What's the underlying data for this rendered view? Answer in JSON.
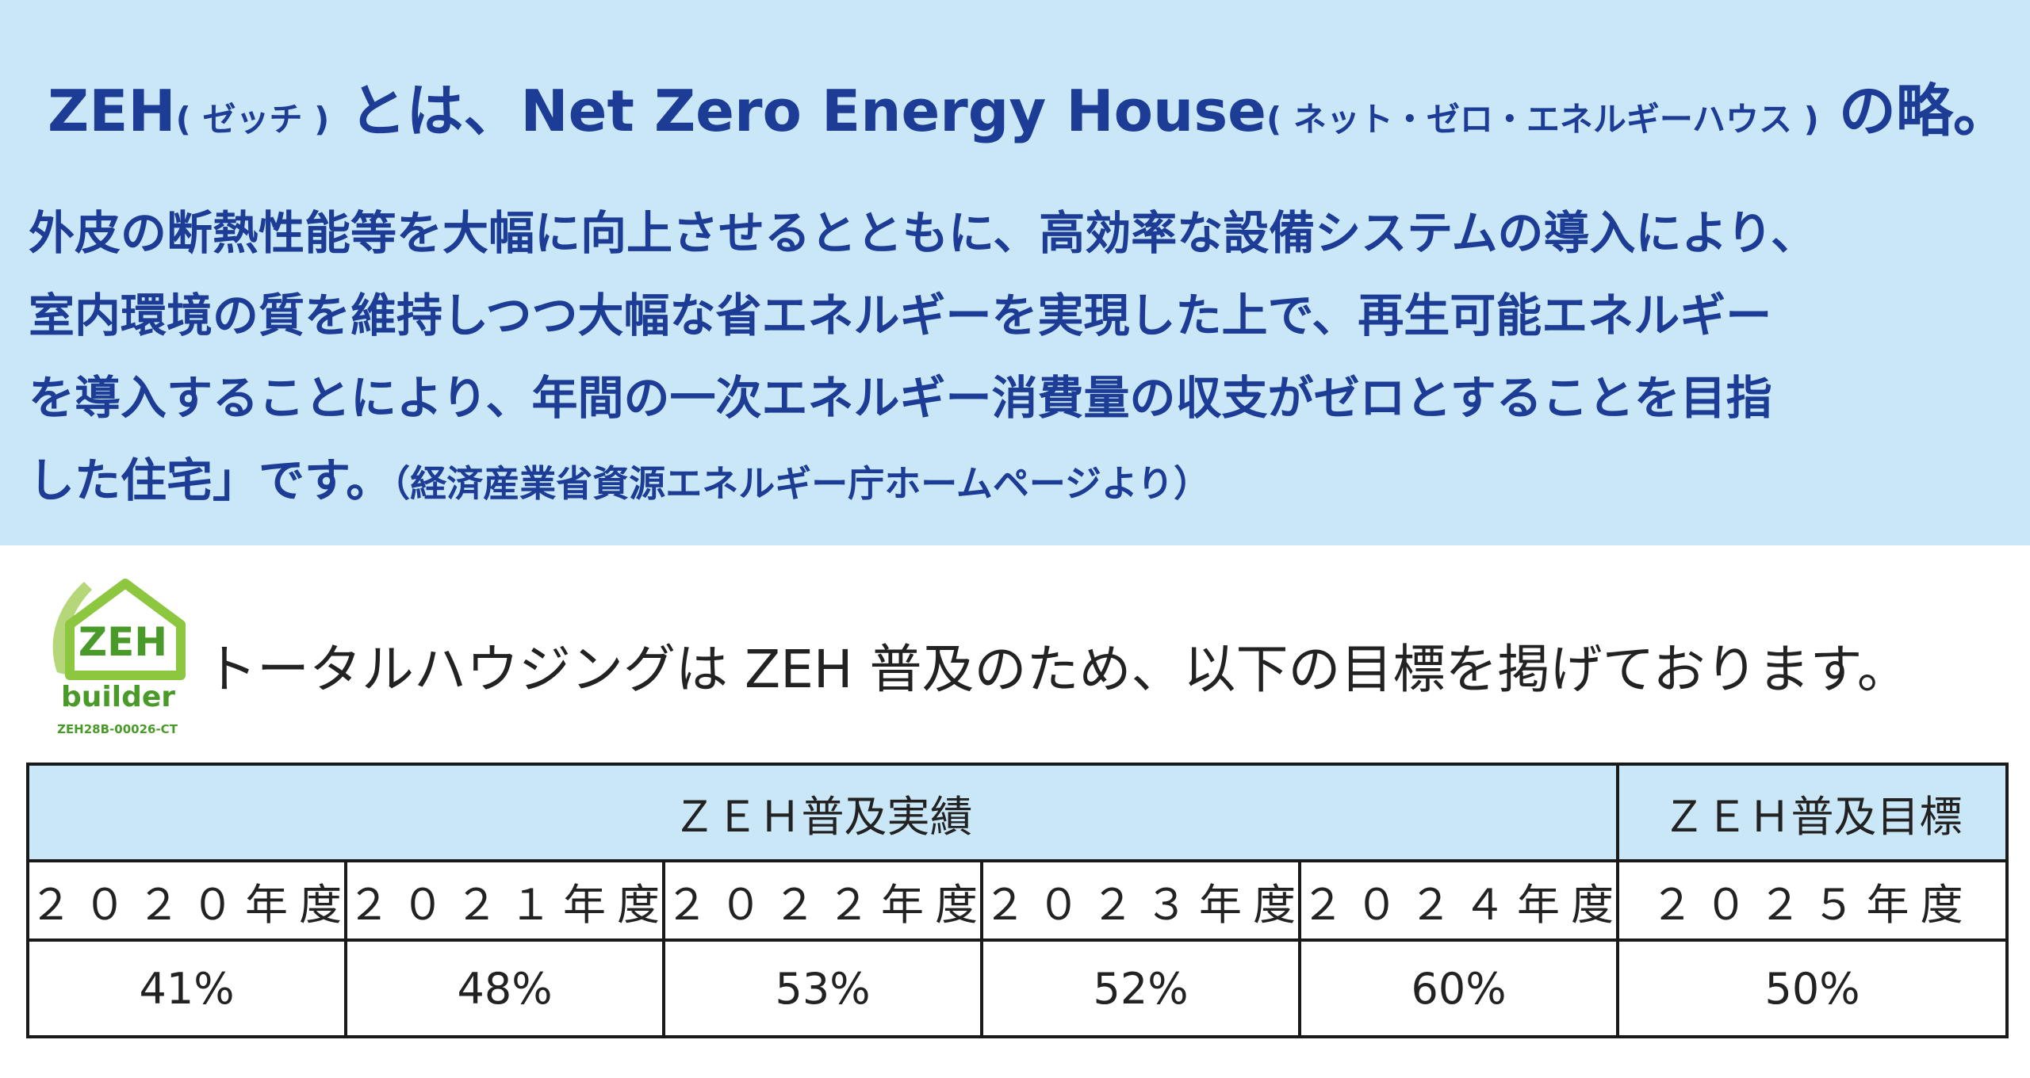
{
  "panel": {
    "title_zeh": "ZEH",
    "title_zeh_reading": "( ゼッチ )",
    "title_towa": " とは、Net Zero Energy House",
    "title_net_reading": "( ネット・ゼロ・エネルギーハウス )",
    "title_end": " の略。",
    "body_lines": [
      "外皮の断熱性能等を大幅に向上させるとともに、高効率な設備システムの導入により、",
      "室内環境の質を維持しつつ大幅な省エネルギーを実現した上で、再生可能エネルギー",
      "を導入することにより、年間の一次エネルギー消費量の収支がゼロとすることを目指",
      "した住宅」です。"
    ],
    "source": "（経済産業省資源エネルギー庁ホームページより）"
  },
  "logo": {
    "word": "ZEH",
    "sub": "builder",
    "code": "ZEH28B-00026-CT",
    "house_color": "#8dc63f",
    "leaf_color": "#b5d77a"
  },
  "lead": "トータルハウジングは ZEH 普及のため、以下の目標を掲げております。",
  "table": {
    "results_header": "ＺＥＨ普及実績",
    "target_header": "ＺＥＨ普及目標",
    "years": [
      "２０２０年度",
      "２０２１年度",
      "２０２２年度",
      "２０２３年度",
      "２０２４年度",
      "２０２５年度"
    ],
    "values": [
      "41%",
      "48%",
      "53%",
      "52%",
      "60%",
      "50%"
    ]
  },
  "colors": {
    "panel_bg": "#c9e7f6",
    "title_text": "#1d3c96",
    "header_bg": "#c9e7f6",
    "border": "#1a1a1a"
  }
}
